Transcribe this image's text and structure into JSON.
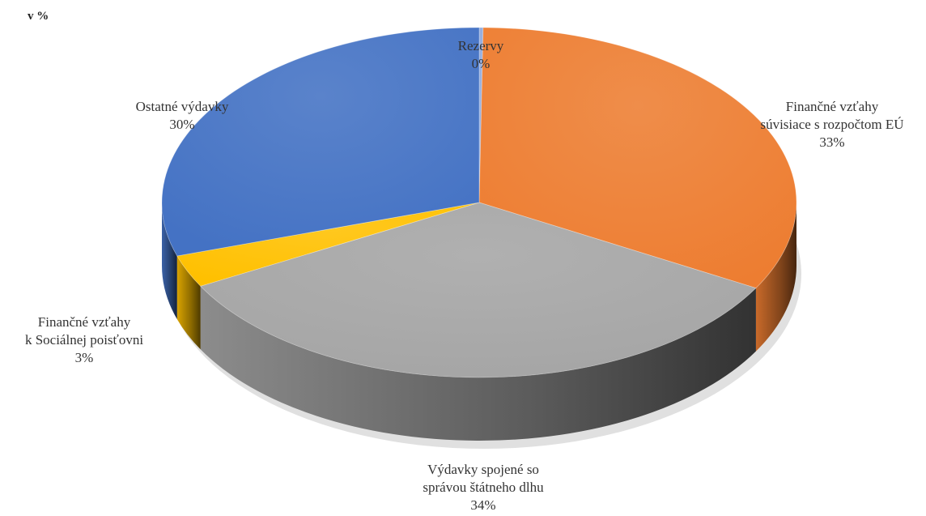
{
  "chart_data": {
    "type": "pie",
    "unit_label": "v %",
    "slices": [
      {
        "name": "Rezervy",
        "label_lines": [
          "Rezervy",
          "0%"
        ],
        "value": 0.2,
        "color": "#4472c4"
      },
      {
        "name": "Finančné vzťahy súvisiace s rozpočtom EÚ",
        "label_lines": [
          "Finančné vzťahy",
          "súvisiace s rozpočtom EÚ",
          "33%"
        ],
        "value": 33,
        "color": "#ed7d31"
      },
      {
        "name": "Výdavky spojené so správou štátneho dlhu",
        "label_lines": [
          "Výdavky spojené so",
          "správou štátneho dlhu",
          "34%"
        ],
        "value": 34,
        "color": "#a5a5a5"
      },
      {
        "name": "Finančné vzťahy k Sociálnej poisťovni",
        "label_lines": [
          "Finančné vzťahy",
          "k Sociálnej poisťovni",
          "3%"
        ],
        "value": 3,
        "color": "#ffc000"
      },
      {
        "name": "Ostatné výdavky",
        "label_lines": [
          "Ostatné výdavky",
          "30%"
        ],
        "value": 30,
        "color": "#4472c4"
      }
    ]
  }
}
